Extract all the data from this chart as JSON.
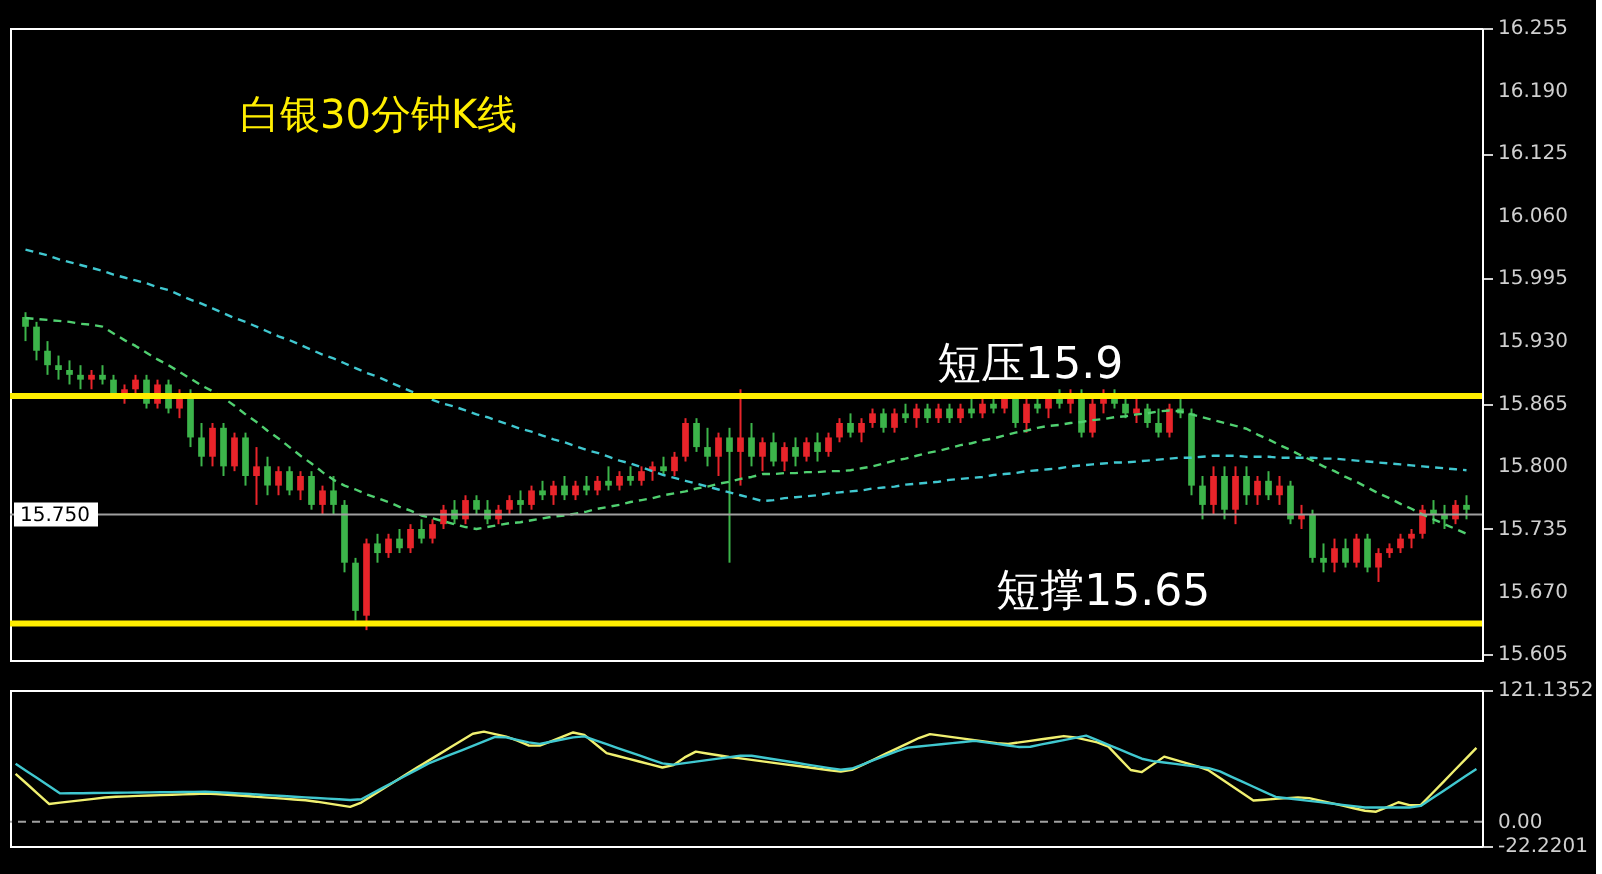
{
  "chart_data": [
    {
      "type": "candlestick",
      "title": "白银30分钟K线",
      "categories": [
        null,
        null,
        null,
        null,
        null,
        null,
        null,
        null,
        null,
        null,
        null,
        null,
        null,
        null,
        null,
        null,
        null,
        null,
        null,
        null,
        null,
        null,
        null,
        null,
        null,
        null,
        null,
        null,
        null,
        null,
        null,
        null,
        null,
        null,
        null,
        null,
        null,
        null,
        null,
        null,
        null,
        null,
        null,
        null,
        null,
        null,
        null,
        null,
        null,
        null,
        null,
        null,
        null,
        null,
        null,
        null,
        null,
        null,
        null,
        null,
        null,
        null,
        null,
        null,
        null,
        null,
        null,
        null,
        null,
        null,
        null,
        null,
        null,
        null,
        null,
        null,
        null,
        null,
        null,
        null,
        null,
        null,
        null,
        null,
        null,
        null,
        null,
        null,
        null,
        null,
        null,
        null,
        null,
        null,
        null,
        null,
        null,
        null,
        null,
        null,
        null,
        null,
        null,
        null,
        null,
        null,
        null,
        null,
        null,
        null,
        null,
        null,
        null,
        null,
        null,
        null,
        null,
        null,
        null,
        null,
        null,
        null,
        null,
        null,
        null,
        null,
        null,
        null,
        null,
        null,
        null,
        null
      ],
      "ohlc": [
        [
          15.955,
          15.96,
          15.93,
          15.945
        ],
        [
          15.945,
          15.95,
          15.91,
          15.92
        ],
        [
          15.92,
          15.93,
          15.895,
          15.905
        ],
        [
          15.905,
          15.915,
          15.89,
          15.9
        ],
        [
          15.9,
          15.91,
          15.885,
          15.895
        ],
        [
          15.895,
          15.905,
          15.88,
          15.89
        ],
        [
          15.89,
          15.9,
          15.88,
          15.895
        ],
        [
          15.895,
          15.905,
          15.885,
          15.89
        ],
        [
          15.89,
          15.895,
          15.87,
          15.875
        ],
        [
          15.875,
          15.885,
          15.865,
          15.88
        ],
        [
          15.88,
          15.895,
          15.87,
          15.89
        ],
        [
          15.89,
          15.895,
          15.86,
          15.865
        ],
        [
          15.865,
          15.89,
          15.86,
          15.885
        ],
        [
          15.885,
          15.89,
          15.855,
          15.86
        ],
        [
          15.86,
          15.88,
          15.85,
          15.875
        ],
        [
          15.875,
          15.88,
          15.82,
          15.83
        ],
        [
          15.83,
          15.845,
          15.8,
          15.81
        ],
        [
          15.81,
          15.845,
          15.8,
          15.84
        ],
        [
          15.84,
          15.845,
          15.79,
          15.8
        ],
        [
          15.8,
          15.835,
          15.795,
          15.83
        ],
        [
          15.83,
          15.835,
          15.78,
          15.79
        ],
        [
          15.79,
          15.82,
          15.76,
          15.8
        ],
        [
          15.8,
          15.81,
          15.77,
          15.78
        ],
        [
          15.78,
          15.8,
          15.77,
          15.795
        ],
        [
          15.795,
          15.8,
          15.77,
          15.775
        ],
        [
          15.775,
          15.795,
          15.765,
          15.79
        ],
        [
          15.79,
          15.795,
          15.755,
          15.76
        ],
        [
          15.76,
          15.78,
          15.75,
          15.775
        ],
        [
          15.775,
          15.79,
          15.75,
          15.76
        ],
        [
          15.76,
          15.765,
          15.69,
          15.7
        ],
        [
          15.7,
          15.705,
          15.64,
          15.65
        ],
        [
          15.645,
          15.725,
          15.63,
          15.72
        ],
        [
          15.72,
          15.73,
          15.7,
          15.71
        ],
        [
          15.71,
          15.73,
          15.705,
          15.725
        ],
        [
          15.725,
          15.735,
          15.71,
          15.715
        ],
        [
          15.715,
          15.74,
          15.71,
          15.735
        ],
        [
          15.735,
          15.745,
          15.72,
          15.725
        ],
        [
          15.725,
          15.745,
          15.72,
          15.74
        ],
        [
          15.74,
          15.76,
          15.735,
          15.755
        ],
        [
          15.755,
          15.765,
          15.74,
          15.745
        ],
        [
          15.745,
          15.77,
          15.74,
          15.765
        ],
        [
          15.765,
          15.77,
          15.75,
          15.755
        ],
        [
          15.755,
          15.765,
          15.74,
          15.745
        ],
        [
          15.745,
          15.76,
          15.74,
          15.755
        ],
        [
          15.755,
          15.77,
          15.75,
          15.765
        ],
        [
          15.765,
          15.775,
          15.75,
          15.76
        ],
        [
          15.76,
          15.78,
          15.755,
          15.775
        ],
        [
          15.775,
          15.785,
          15.765,
          15.77
        ],
        [
          15.77,
          15.785,
          15.76,
          15.78
        ],
        [
          15.78,
          15.79,
          15.765,
          15.77
        ],
        [
          15.77,
          15.785,
          15.765,
          15.78
        ],
        [
          15.78,
          15.79,
          15.77,
          15.775
        ],
        [
          15.775,
          15.79,
          15.77,
          15.785
        ],
        [
          15.785,
          15.8,
          15.775,
          15.78
        ],
        [
          15.78,
          15.795,
          15.775,
          15.79
        ],
        [
          15.79,
          15.8,
          15.78,
          15.785
        ],
        [
          15.785,
          15.8,
          15.78,
          15.795
        ],
        [
          15.795,
          15.805,
          15.785,
          15.8
        ],
        [
          15.8,
          15.81,
          15.79,
          15.795
        ],
        [
          15.795,
          15.815,
          15.79,
          15.81
        ],
        [
          15.81,
          15.85,
          15.805,
          15.845
        ],
        [
          15.845,
          15.85,
          15.815,
          15.82
        ],
        [
          15.82,
          15.84,
          15.8,
          15.81
        ],
        [
          15.81,
          15.835,
          15.79,
          15.83
        ],
        [
          15.83,
          15.84,
          15.7,
          15.815
        ],
        [
          15.815,
          15.88,
          15.78,
          15.83
        ],
        [
          15.83,
          15.845,
          15.8,
          15.81
        ],
        [
          15.81,
          15.83,
          15.795,
          15.825
        ],
        [
          15.825,
          15.835,
          15.8,
          15.805
        ],
        [
          15.805,
          15.825,
          15.795,
          15.82
        ],
        [
          15.82,
          15.83,
          15.8,
          15.81
        ],
        [
          15.81,
          15.83,
          15.805,
          15.825
        ],
        [
          15.825,
          15.835,
          15.805,
          15.815
        ],
        [
          15.815,
          15.835,
          15.81,
          15.83
        ],
        [
          15.83,
          15.85,
          15.825,
          15.845
        ],
        [
          15.845,
          15.855,
          15.83,
          15.835
        ],
        [
          15.835,
          15.85,
          15.825,
          15.845
        ],
        [
          15.845,
          15.86,
          15.84,
          15.855
        ],
        [
          15.855,
          15.86,
          15.835,
          15.84
        ],
        [
          15.84,
          15.86,
          15.835,
          15.855
        ],
        [
          15.855,
          15.865,
          15.845,
          15.85
        ],
        [
          15.85,
          15.865,
          15.84,
          15.86
        ],
        [
          15.86,
          15.865,
          15.845,
          15.85
        ],
        [
          15.85,
          15.865,
          15.845,
          15.86
        ],
        [
          15.86,
          15.865,
          15.845,
          15.85
        ],
        [
          15.85,
          15.865,
          15.845,
          15.86
        ],
        [
          15.86,
          15.87,
          15.85,
          15.855
        ],
        [
          15.855,
          15.87,
          15.85,
          15.865
        ],
        [
          15.865,
          15.875,
          15.855,
          15.86
        ],
        [
          15.86,
          15.875,
          15.855,
          15.87
        ],
        [
          15.87,
          15.875,
          15.84,
          15.845
        ],
        [
          15.845,
          15.87,
          15.835,
          15.865
        ],
        [
          15.865,
          15.875,
          15.855,
          15.86
        ],
        [
          15.86,
          15.875,
          15.85,
          15.87
        ],
        [
          15.87,
          15.88,
          15.86,
          15.865
        ],
        [
          15.865,
          15.88,
          15.855,
          15.875
        ],
        [
          15.875,
          15.88,
          15.83,
          15.835
        ],
        [
          15.835,
          15.87,
          15.83,
          15.865
        ],
        [
          15.865,
          15.88,
          15.855,
          15.875
        ],
        [
          15.875,
          15.88,
          15.86,
          15.865
        ],
        [
          15.865,
          15.875,
          15.85,
          15.855
        ],
        [
          15.855,
          15.87,
          15.845,
          15.86
        ],
        [
          15.86,
          15.865,
          15.84,
          15.845
        ],
        [
          15.845,
          15.86,
          15.83,
          15.835
        ],
        [
          15.835,
          15.865,
          15.83,
          15.86
        ],
        [
          15.86,
          15.87,
          15.85,
          15.855
        ],
        [
          15.855,
          15.86,
          15.77,
          15.78
        ],
        [
          15.78,
          15.79,
          15.745,
          15.76
        ],
        [
          15.76,
          15.8,
          15.75,
          15.79
        ],
        [
          15.79,
          15.8,
          15.745,
          15.755
        ],
        [
          15.755,
          15.8,
          15.74,
          15.79
        ],
        [
          15.79,
          15.8,
          15.76,
          15.77
        ],
        [
          15.77,
          15.79,
          15.76,
          15.785
        ],
        [
          15.785,
          15.795,
          15.765,
          15.77
        ],
        [
          15.77,
          15.79,
          15.76,
          15.78
        ],
        [
          15.78,
          15.785,
          15.74,
          15.745
        ],
        [
          15.745,
          15.76,
          15.735,
          15.75
        ],
        [
          15.75,
          15.755,
          15.7,
          15.705
        ],
        [
          15.705,
          15.72,
          15.69,
          15.7
        ],
        [
          15.7,
          15.725,
          15.69,
          15.715
        ],
        [
          15.715,
          15.725,
          15.695,
          15.7
        ],
        [
          15.7,
          15.73,
          15.695,
          15.725
        ],
        [
          15.725,
          15.73,
          15.69,
          15.695
        ],
        [
          15.695,
          15.715,
          15.68,
          15.71
        ],
        [
          15.71,
          15.72,
          15.705,
          15.715
        ],
        [
          15.715,
          15.73,
          15.71,
          15.725
        ],
        [
          15.725,
          15.735,
          15.715,
          15.73
        ],
        [
          15.73,
          15.76,
          15.725,
          15.755
        ],
        [
          15.755,
          15.765,
          15.74,
          15.75
        ],
        [
          15.75,
          15.76,
          15.735,
          15.745
        ],
        [
          15.745,
          15.765,
          15.74,
          15.76
        ],
        [
          15.76,
          15.77,
          15.745,
          15.755
        ]
      ],
      "colors": [
        "#3cb44a",
        "#3cb44a",
        "#3cb44a",
        "#3cb44a",
        "#3cb44a",
        "#3cb44a",
        "#e8242a",
        "#3cb44a",
        "#3cb44a",
        "#e8242a",
        "#e8242a",
        "#3cb44a",
        "#e8242a",
        "#3cb44a",
        "#e8242a",
        "#3cb44a",
        "#3cb44a",
        "#e8242a",
        "#3cb44a",
        "#e8242a",
        "#3cb44a",
        "#e8242a",
        "#3cb44a",
        "#e8242a",
        "#3cb44a",
        "#e8242a",
        "#3cb44a",
        "#e8242a",
        "#3cb44a",
        "#3cb44a",
        "#3cb44a",
        "#e8242a",
        "#3cb44a",
        "#e8242a",
        "#3cb44a",
        "#e8242a",
        "#3cb44a",
        "#e8242a",
        "#e8242a",
        "#3cb44a",
        "#e8242a",
        "#3cb44a",
        "#3cb44a",
        "#e8242a",
        "#e8242a",
        "#3cb44a",
        "#e8242a",
        "#3cb44a",
        "#e8242a",
        "#3cb44a",
        "#e8242a",
        "#3cb44a",
        "#e8242a",
        "#3cb44a",
        "#e8242a",
        "#3cb44a",
        "#e8242a",
        "#e8242a",
        "#3cb44a",
        "#e8242a",
        "#e8242a",
        "#3cb44a",
        "#3cb44a",
        "#e8242a",
        "#3cb44a",
        "#e8242a",
        "#3cb44a",
        "#e8242a",
        "#3cb44a",
        "#e8242a",
        "#3cb44a",
        "#e8242a",
        "#3cb44a",
        "#e8242a",
        "#e8242a",
        "#3cb44a",
        "#e8242a",
        "#e8242a",
        "#3cb44a",
        "#e8242a",
        "#3cb44a",
        "#e8242a",
        "#3cb44a",
        "#e8242a",
        "#3cb44a",
        "#e8242a",
        "#3cb44a",
        "#e8242a",
        "#3cb44a",
        "#e8242a",
        "#3cb44a",
        "#e8242a",
        "#3cb44a",
        "#e8242a",
        "#3cb44a",
        "#e8242a",
        "#3cb44a",
        "#e8242a",
        "#e8242a",
        "#3cb44a",
        "#3cb44a",
        "#e8242a",
        "#3cb44a",
        "#3cb44a",
        "#e8242a",
        "#3cb44a",
        "#3cb44a",
        "#3cb44a",
        "#e8242a",
        "#3cb44a",
        "#e8242a",
        "#3cb44a",
        "#e8242a",
        "#3cb44a",
        "#e8242a",
        "#3cb44a",
        "#e8242a",
        "#3cb44a",
        "#3cb44a",
        "#e8242a",
        "#3cb44a",
        "#e8242a",
        "#3cb44a",
        "#e8242a",
        "#e8242a",
        "#e8242a",
        "#e8242a",
        "#e8242a",
        "#3cb44a",
        "#3cb44a",
        "#e8242a",
        "#3cb44a"
      ],
      "series": [
        {
          "type": "line",
          "color": "#40c8d0",
          "line_style": "dashed",
          "values": [
            16.025,
            16.022,
            16.019,
            16.015,
            16.012,
            16.009,
            16.006,
            16.003,
            15.999,
            15.996,
            15.993,
            15.99,
            15.986,
            15.983,
            15.978,
            15.973,
            15.969,
            15.964,
            15.959,
            15.954,
            15.95,
            15.945,
            15.94,
            15.935,
            15.931,
            15.926,
            15.921,
            15.916,
            15.912,
            15.907,
            15.902,
            15.897,
            15.893,
            15.888,
            15.883,
            15.878,
            15.874,
            15.869,
            15.865,
            15.862,
            15.858,
            15.854,
            15.851,
            15.847,
            15.843,
            15.839,
            15.836,
            15.832,
            15.828,
            15.825,
            15.821,
            15.817,
            15.814,
            15.81,
            15.806,
            15.803,
            15.799,
            15.795,
            15.791,
            15.788,
            15.785,
            15.782,
            15.779,
            15.776,
            15.773,
            15.77,
            15.767,
            15.764,
            15.765,
            15.767,
            15.768,
            15.769,
            15.77,
            15.772,
            15.773,
            15.774,
            15.775,
            15.777,
            15.778,
            15.779,
            15.781,
            15.782,
            15.783,
            15.784,
            15.786,
            15.787,
            15.788,
            15.789,
            15.791,
            15.792,
            15.793,
            15.795,
            15.796,
            15.797,
            15.798,
            15.8,
            15.801,
            15.802,
            15.803,
            15.804,
            15.804,
            15.805,
            15.806,
            15.807,
            15.808,
            15.809,
            15.809,
            15.81,
            15.811,
            15.811,
            15.811,
            15.81,
            15.81,
            15.81,
            15.809,
            15.809,
            15.809,
            15.809,
            15.808,
            15.808,
            15.807,
            15.806,
            15.805,
            15.804,
            15.803,
            15.802,
            15.801,
            15.8,
            15.799,
            15.798,
            15.797,
            15.796
          ]
        },
        {
          "type": "line",
          "color": "#50d070",
          "line_style": "dashed",
          "values": [
            15.954,
            15.953,
            15.952,
            15.951,
            15.95,
            15.948,
            15.947,
            15.945,
            15.938,
            15.931,
            15.925,
            15.918,
            15.911,
            15.905,
            15.898,
            15.891,
            15.884,
            15.878,
            15.871,
            15.863,
            15.854,
            15.846,
            15.837,
            15.829,
            15.82,
            15.811,
            15.803,
            15.794,
            15.786,
            15.78,
            15.776,
            15.771,
            15.767,
            15.763,
            15.758,
            15.754,
            15.749,
            15.746,
            15.743,
            15.74,
            15.737,
            15.735,
            15.737,
            15.739,
            15.741,
            15.742,
            15.744,
            15.746,
            15.748,
            15.749,
            15.751,
            15.753,
            15.756,
            15.758,
            15.76,
            15.763,
            15.765,
            15.767,
            15.77,
            15.772,
            15.774,
            15.777,
            15.779,
            15.782,
            15.784,
            15.787,
            15.789,
            15.792,
            15.792,
            15.793,
            15.793,
            15.794,
            15.794,
            15.795,
            15.795,
            15.796,
            15.798,
            15.8,
            15.803,
            15.806,
            15.808,
            15.811,
            15.814,
            15.816,
            15.819,
            15.822,
            15.824,
            15.827,
            15.829,
            15.832,
            15.835,
            15.837,
            15.84,
            15.842,
            15.843,
            15.845,
            15.846,
            15.848,
            15.849,
            15.851,
            15.852,
            15.854,
            15.855,
            15.857,
            15.858,
            15.857,
            15.854,
            15.851,
            15.848,
            15.845,
            15.842,
            15.839,
            15.833,
            15.828,
            15.822,
            15.817,
            15.811,
            15.806,
            15.8,
            15.795,
            15.789,
            15.784,
            15.778,
            15.772,
            15.767,
            15.761,
            15.756,
            15.75,
            15.745,
            15.74,
            15.735,
            15.73
          ]
        }
      ],
      "ylim": [
        15.599,
        16.255
      ],
      "yticks": [
        15.605,
        {
          "value": 15.67,
          "label": "15.670"
        },
        15.735,
        {
          "value": 15.8,
          "label": "15.800"
        },
        15.865,
        {
          "value": 15.93,
          "label": "15.930"
        },
        15.995,
        {
          "value": 16.06,
          "label": "16.060"
        },
        16.125,
        {
          "value": 16.19,
          "label": "16.190"
        },
        16.255
      ],
      "ref_lines": [
        {
          "axis": "y",
          "value": 15.873,
          "label": "短压15.9",
          "color": "#ffee00"
        },
        {
          "axis": "y",
          "value": 15.637,
          "label": "短撑15.65",
          "color": "#ffee00"
        },
        {
          "axis": "y",
          "value": 15.75,
          "label": "15.750",
          "color": "#a0a0a0"
        }
      ],
      "tick_labels": "y",
      "grid": false
    },
    {
      "type": "line",
      "categories": [
        null,
        null,
        null,
        null,
        null,
        null,
        null,
        null,
        null,
        null,
        null,
        null,
        null,
        null,
        null,
        null,
        null,
        null,
        null,
        null,
        null,
        null,
        null,
        null,
        null,
        null,
        null,
        null,
        null,
        null,
        null,
        null,
        null,
        null,
        null,
        null,
        null,
        null,
        null,
        null,
        null,
        null,
        null,
        null,
        null,
        null,
        null,
        null,
        null,
        null,
        null,
        null,
        null,
        null,
        null,
        null,
        null,
        null,
        null,
        null,
        null,
        null,
        null,
        null,
        null,
        null,
        null,
        null,
        null,
        null,
        null,
        null,
        null,
        null,
        null,
        null,
        null,
        null,
        null,
        null,
        null,
        null,
        null,
        null,
        null,
        null,
        null,
        null,
        null,
        null,
        null,
        null,
        null,
        null,
        null,
        null,
        null,
        null,
        null,
        null,
        null,
        null,
        null,
        null,
        null,
        null,
        null,
        null,
        null,
        null,
        null,
        null,
        null,
        null,
        null,
        null,
        null,
        null,
        null,
        null,
        null,
        null,
        null,
        null,
        null,
        null,
        null,
        null,
        null,
        null,
        null,
        null
      ],
      "series": [
        {
          "color": "#f0f070",
          "values": [
            44,
            35,
            25.6,
            16.4,
            17.6,
            18.8,
            19.9,
            21.1,
            22.3,
            23.1,
            23.4,
            23.8,
            24.2,
            24.5,
            24.9,
            25.2,
            25.6,
            26,
            25.6,
            24.9,
            24.2,
            23.5,
            22.7,
            22,
            21.3,
            20.5,
            19.8,
            18.5,
            16.9,
            15.3,
            13.7,
            17.7,
            24.1,
            30.6,
            37,
            43.5,
            49.8,
            56,
            62.2,
            68.5,
            74.7,
            80.9,
            82.9,
            80.6,
            78.3,
            74.6,
            70.2,
            70,
            74,
            78.1,
            82.1,
            79.9,
            71.5,
            63.1,
            60.5,
            57.8,
            55.2,
            52.6,
            49.9,
            52.1,
            59.2,
            64.5,
            62.8,
            61.2,
            59.6,
            58.3,
            56.9,
            55.6,
            54.2,
            52.8,
            51.5,
            50.1,
            48.8,
            47.4,
            46.1,
            47.8,
            52.6,
            57.5,
            62.4,
            67.2,
            72.1,
            77,
            80.6,
            79.2,
            77.8,
            76.4,
            75,
            73.7,
            72.3,
            71.5,
            73,
            74.4,
            75.9,
            77.3,
            78.8,
            77.6,
            75.3,
            73,
            69.1,
            58.3,
            47.6,
            45.7,
            52.8,
            59.9,
            56.9,
            53.9,
            51,
            47.2,
            40.3,
            33.4,
            26.5,
            19.6,
            20.3,
            21.1,
            21.8,
            22.5,
            21.8,
            19.5,
            17.2,
            14.9,
            12.5,
            10.2,
            9.3,
            13.6,
            18,
            15.3,
            15.3,
            25.8,
            36.3,
            46.9,
            57.4,
            68
          ]
        },
        {
          "color": "#40c8d0",
          "values": [
            53.3,
            46.5,
            39.7,
            32.9,
            26.1,
            26.2,
            26.3,
            26.5,
            26.6,
            26.7,
            26.8,
            26.9,
            27.1,
            27.2,
            27.3,
            27.4,
            27.5,
            27.7,
            27.3,
            26.7,
            26.1,
            25.5,
            24.9,
            24.3,
            23.7,
            23.1,
            22.5,
            21.9,
            21.3,
            20.7,
            20.1,
            20.7,
            26.2,
            31.7,
            37.1,
            42.6,
            48,
            53.5,
            57.6,
            61.7,
            65.7,
            69.8,
            73.9,
            78,
            77.6,
            75.3,
            73,
            71.6,
            73.6,
            75.6,
            77.6,
            78.5,
            74.9,
            71.4,
            67.8,
            64.3,
            60.8,
            57.2,
            53.7,
            52.6,
            53.9,
            55.3,
            56.7,
            58.1,
            59.4,
            60.8,
            60.7,
            59.1,
            57.5,
            55.9,
            54.3,
            52.6,
            51,
            49.4,
            47.8,
            49,
            52.9,
            56.9,
            60.9,
            64.8,
            68.2,
            69.2,
            70.3,
            71.3,
            72.3,
            73.4,
            74.4,
            73,
            71.6,
            70.1,
            68.7,
            69,
            71.1,
            73.1,
            75.1,
            77.2,
            79.2,
            75,
            70.7,
            66.5,
            62.2,
            58,
            55.8,
            54.5,
            53.2,
            51.9,
            50.6,
            49.3,
            46.3,
            41.6,
            37,
            32.2,
            27.6,
            22.9,
            21.7,
            20.5,
            19.3,
            18.1,
            16.8,
            15.6,
            14.4,
            13.2,
            13.2,
            13.2,
            13.2,
            13.2,
            14.6,
            21.4,
            28.2,
            35,
            41.8,
            48.6
          ]
        }
      ],
      "ylim": [
        -22.2201,
        121.1352
      ],
      "yticks": [
        {
          "value": -22.2201,
          "label": "-22.2201"
        },
        {
          "value": 0,
          "label": "0.00"
        },
        121.1352
      ],
      "ref_lines": [
        {
          "axis": "y",
          "value": 0,
          "color": "#a0a0a0",
          "line_style": "dashed"
        }
      ],
      "tick_labels": "y",
      "grid": false
    }
  ]
}
